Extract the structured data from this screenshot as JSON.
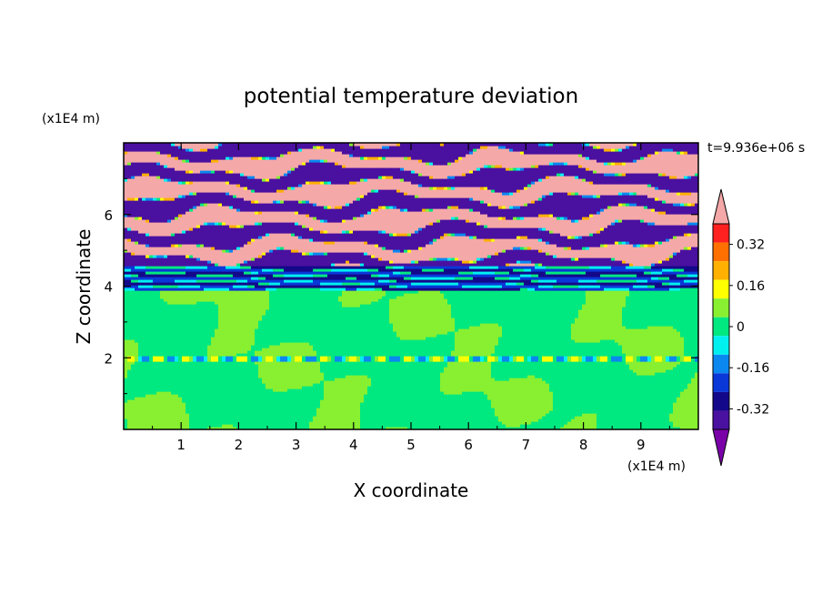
{
  "chart_data": {
    "type": "heatmap",
    "title": "potential temperature deviation",
    "xlabel": "X coordinate",
    "ylabel": "Z coordinate",
    "x_unit": "(x1E4 m)",
    "y_unit": "(x1E4 m)",
    "time_label": "t=9.936e+06 s",
    "xlim": [
      0,
      10
    ],
    "ylim": [
      0,
      8
    ],
    "x_ticks": [
      "1",
      "2",
      "3",
      "4",
      "5",
      "6",
      "7",
      "8",
      "9"
    ],
    "y_ticks": [
      "2",
      "4",
      "6"
    ],
    "colorbar": {
      "levels": [
        -0.48,
        -0.4,
        -0.32,
        -0.24,
        -0.16,
        -0.08,
        0,
        0.08,
        0.16,
        0.24,
        0.32,
        0.4,
        0.48
      ],
      "colors": [
        "#7a00a8",
        "#4a10a0",
        "#14088a",
        "#0a38d8",
        "#0a88f0",
        "#00f0f0",
        "#00e880",
        "#88f030",
        "#ffff00",
        "#ffb000",
        "#ff7000",
        "#ff2020",
        "#f5a8a8"
      ],
      "tick_labels": [
        "0.32",
        "0.16",
        "0",
        "-0.16",
        "-0.32"
      ],
      "tick_values": [
        0.32,
        0.16,
        0,
        -0.16,
        -0.32
      ]
    }
  }
}
